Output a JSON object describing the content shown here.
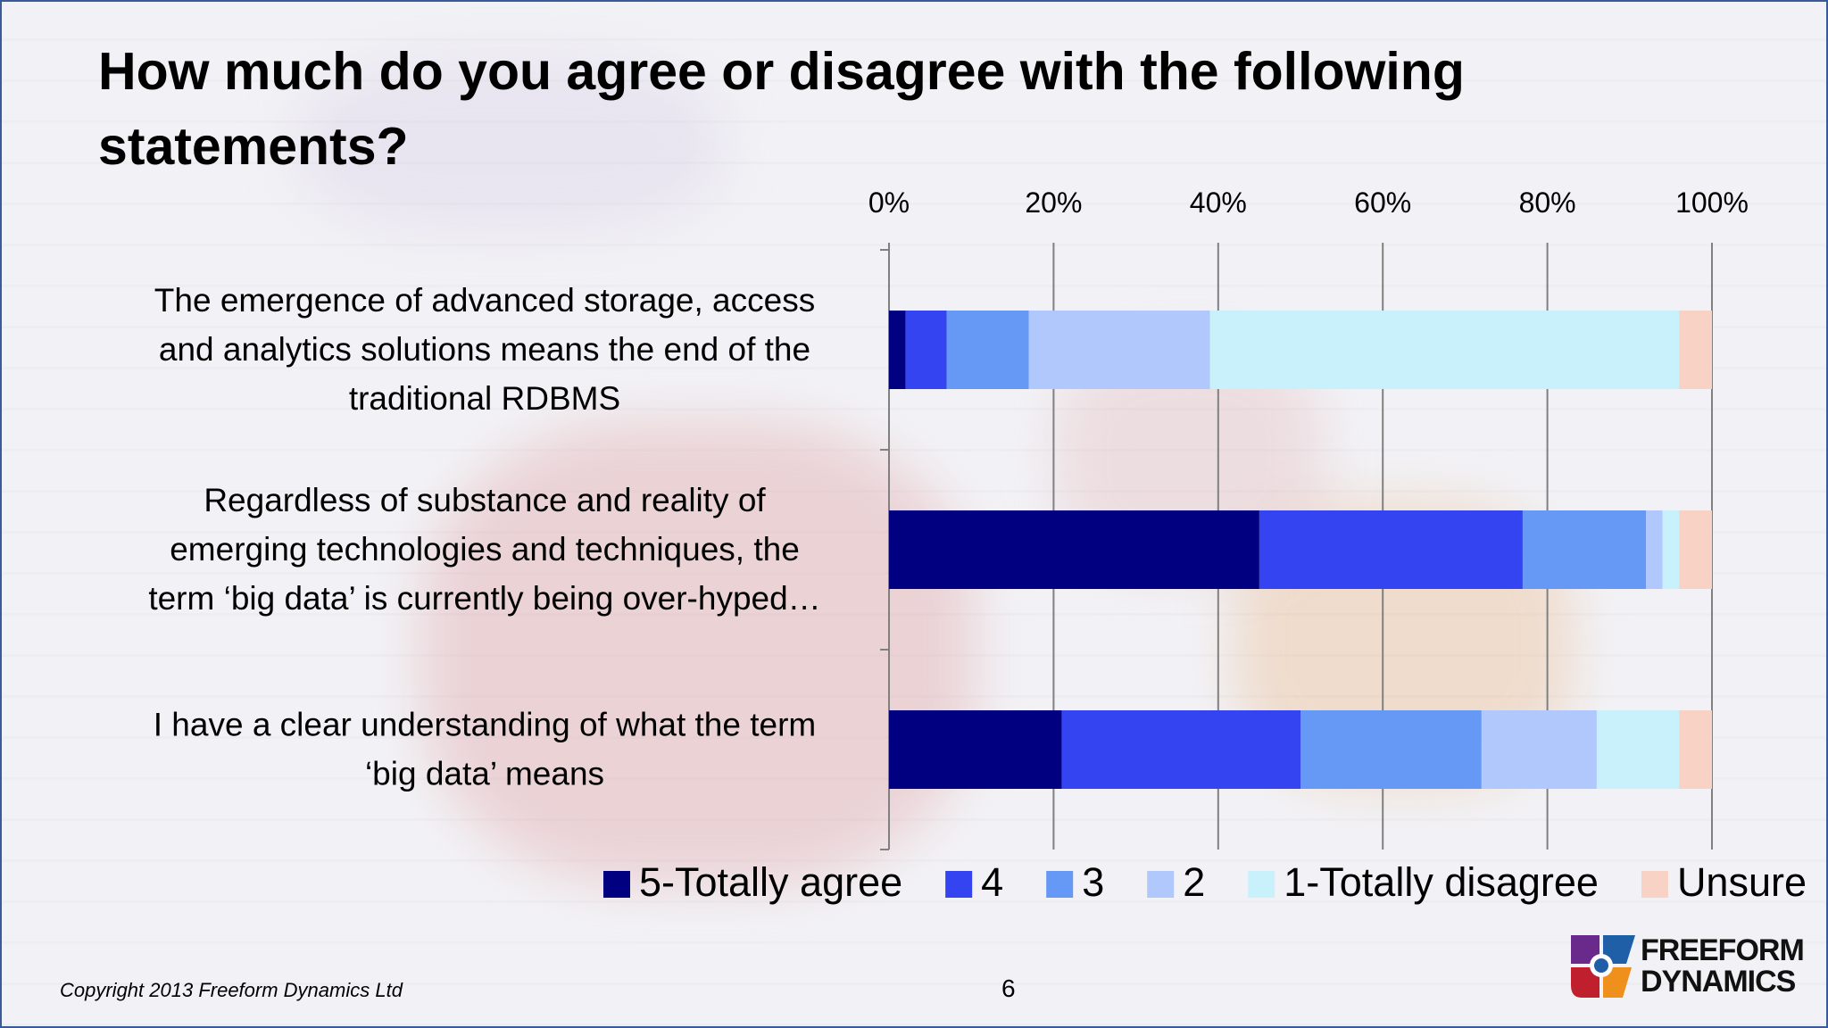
{
  "slide": {
    "title": "How much do you agree or disagree with the following statements?",
    "copyright": "Copyright 2013 Freeform Dynamics Ltd",
    "page_number": "6",
    "logo": {
      "line1": "FREEFORM",
      "line2": "DYNAMICS"
    }
  },
  "chart_data": {
    "type": "bar",
    "orientation": "horizontal",
    "stacked": "100%",
    "title": "",
    "xlabel": "",
    "ylabel": "",
    "xlim": [
      0,
      100
    ],
    "xticks": [
      "0%",
      "20%",
      "40%",
      "60%",
      "80%",
      "100%"
    ],
    "axis_position": "top",
    "grid": true,
    "legend_position": "bottom",
    "categories": [
      "The emergence of advanced storage, access and analytics solutions means the end of the traditional RDBMS",
      "Regardless of substance and reality of emerging technologies and techniques, the term ‘big data’ is currently being over-hyped…",
      "I have a clear understanding of what the term ‘big data’ means"
    ],
    "category_lines": [
      [
        "The emergence of advanced storage, access",
        "and analytics solutions means the end of the",
        "traditional RDBMS"
      ],
      [
        "Regardless of substance and reality of",
        "emerging technologies and techniques, the",
        "term ‘big data’ is currently being over-hyped…"
      ],
      [
        "I have a clear understanding of what the term",
        "‘big data’ means"
      ]
    ],
    "series": [
      {
        "name": "5-Totally agree",
        "color": "#000080",
        "values": [
          2,
          45,
          21
        ]
      },
      {
        "name": "4",
        "color": "#3344f0",
        "values": [
          5,
          32,
          29
        ]
      },
      {
        "name": "3",
        "color": "#6699f6",
        "values": [
          10,
          15,
          22
        ]
      },
      {
        "name": "2",
        "color": "#b0c8fc",
        "values": [
          22,
          2,
          14
        ]
      },
      {
        "name": "1-Totally disagree",
        "color": "#c8f1fc",
        "values": [
          57,
          2,
          10
        ]
      },
      {
        "name": "Unsure",
        "color": "#f8d2c4",
        "values": [
          4,
          4,
          4
        ]
      }
    ]
  }
}
